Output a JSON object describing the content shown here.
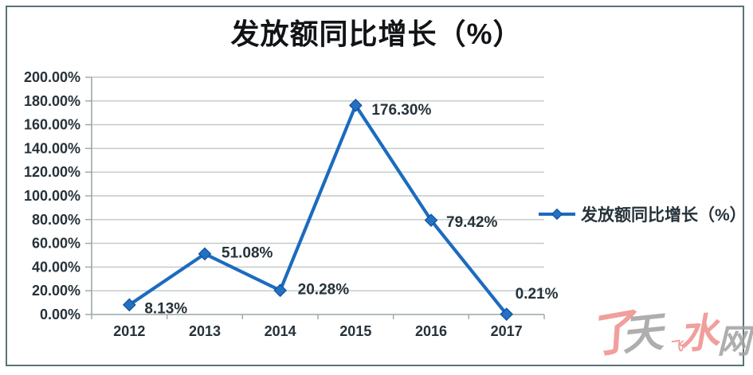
{
  "title": "发放额同比增长（%）",
  "legend": {
    "label": "发放额同比增长（%）"
  },
  "chart_data": {
    "type": "line",
    "title": "发放额同比增长（%）",
    "categories": [
      "2012",
      "2013",
      "2014",
      "2015",
      "2016",
      "2017"
    ],
    "series": [
      {
        "name": "发放额同比增长（%）",
        "values": [
          8.13,
          51.08,
          20.28,
          176.3,
          79.42,
          0.21
        ]
      }
    ],
    "point_labels": [
      "8.13%",
      "51.08%",
      "20.28%",
      "176.30%",
      "79.42%",
      "0.21%"
    ],
    "y_tick_labels": [
      "200.00%",
      "180.00%",
      "160.00%",
      "140.00%",
      "120.00%",
      "100.00%",
      "80.00%",
      "60.00%",
      "40.00%",
      "20.00%",
      "0.00%"
    ],
    "ylim": [
      0,
      200
    ],
    "y_step": 20,
    "xlabel": "",
    "ylabel": "",
    "grid": true,
    "legend_position": "right",
    "marker": "diamond"
  },
  "colors": {
    "line": "#1c6bbf",
    "marker_fill": "#2470c2",
    "marker_edge": "#11519e",
    "grid": "#c0c8c7",
    "axis": "#9aa6a6",
    "tick_text": "#26323a",
    "data_label_text": "#26323a",
    "title_text": "#111416",
    "frame_border": "#5a7378",
    "watermark_red": "#ef8f8b",
    "watermark_gray": "#a0a0a0",
    "background": "#ffffff"
  },
  "watermark": {
    "text": "天水网",
    "chars": [
      {
        "ch": "了",
        "color": "#ef8f8b"
      },
      {
        "ch": "天",
        "color": "#a0a0a0"
      },
      {
        "ch": "飞",
        "color": "#ef8f8b"
      },
      {
        "ch": "水",
        "color": "#ef8f8b"
      },
      {
        "ch": "网",
        "color": "#a0a0a0"
      }
    ]
  }
}
